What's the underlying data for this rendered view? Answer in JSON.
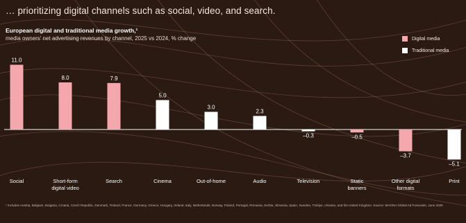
{
  "headline": "… prioritizing digital channels such as social, video, and search.",
  "footnote": "¹ Includes Austria, Belgium, Bulgaria, Croatia, Czech Republic, Denmark, Finland, France, Germany, Greece, Hungary, Ireland, Italy, Netherlands, Norway, Poland, Portugal, Romania, Serbia, Slovenia, Spain, Sweden, Türkiye, Ukraine, and the United Kingdom. Source: MAGNA Global Ad Forecasts, June 2025",
  "colors": {
    "background": "#2a1a12",
    "digital": "#f4a7ad",
    "traditional": "#ffffff",
    "swirl": "#b8897a"
  },
  "chart_data": {
    "type": "bar",
    "title": "European digital and traditional media growth,¹",
    "subtitle": "media owners' net advertising revenues by channel, 2025 vs 2024, % change",
    "legend_position": "top-right",
    "grid": false,
    "ylim": [
      -6,
      12
    ],
    "series": [
      {
        "name": "Digital media",
        "color": "#f4a7ad"
      },
      {
        "name": "Traditional media",
        "color": "#ffffff"
      }
    ],
    "categories": [
      "Social",
      "Short-form digital video",
      "Search",
      "Cinema",
      "Out-of-home",
      "Audio",
      "Television",
      "Static banners",
      "Other digital formats",
      "Print"
    ],
    "values": [
      11.0,
      8.0,
      7.9,
      5.0,
      3.0,
      2.3,
      -0.3,
      -0.5,
      -3.7,
      -5.1
    ],
    "value_labels": [
      "11.0",
      "8.0",
      "7.9",
      "5.0",
      "3.0",
      "2.3",
      "–0.3",
      "–0.5",
      "–3.7",
      "–5.1"
    ],
    "category_types": [
      "digital",
      "digital",
      "digital",
      "traditional",
      "traditional",
      "traditional",
      "traditional",
      "digital",
      "digital",
      "traditional"
    ],
    "category_lines": [
      [
        "Social"
      ],
      [
        "Short-form",
        "digital video"
      ],
      [
        "Search"
      ],
      [
        "Cinema"
      ],
      [
        "Out-of-home"
      ],
      [
        "Audio"
      ],
      [
        "Television"
      ],
      [
        "Static",
        "banners"
      ],
      [
        "Other digital",
        "formats"
      ],
      [
        "Print"
      ]
    ]
  }
}
